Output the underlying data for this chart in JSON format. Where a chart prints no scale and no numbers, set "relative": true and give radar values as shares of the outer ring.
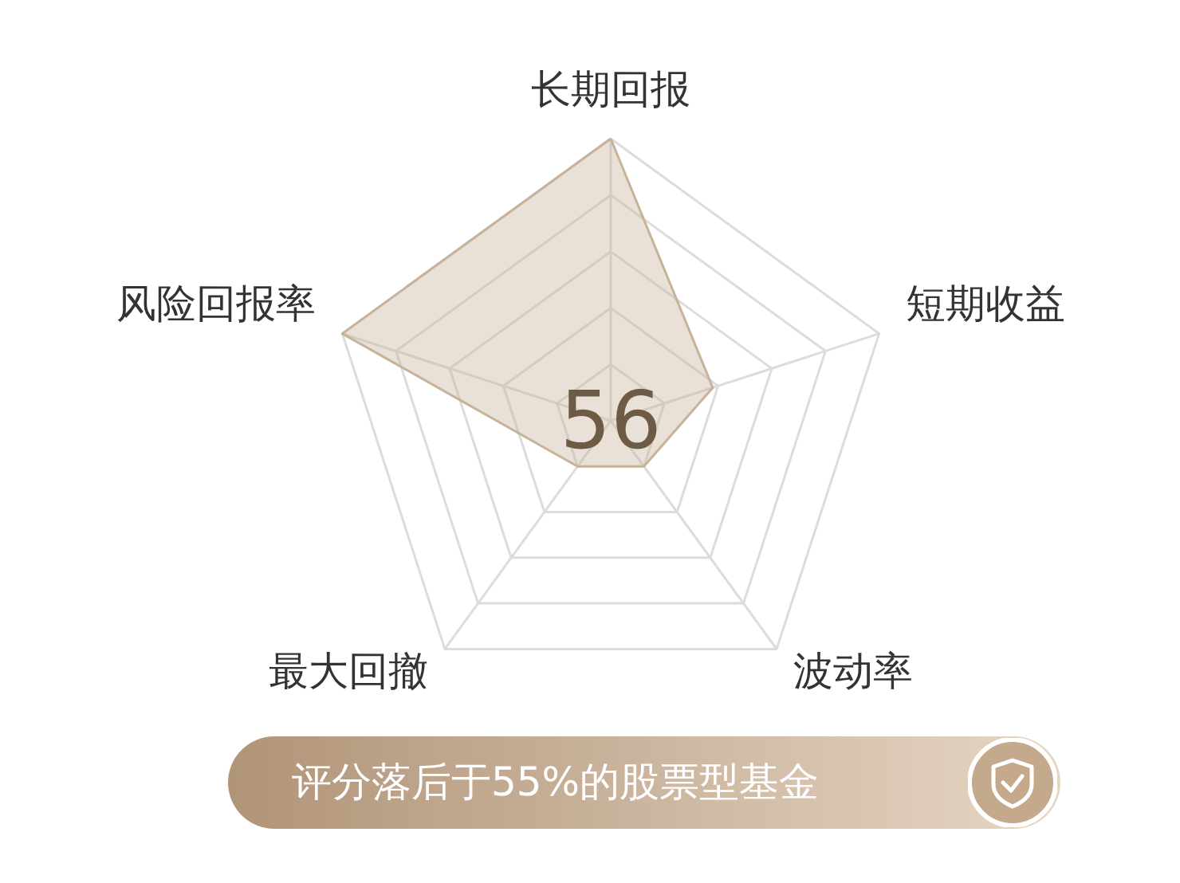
{
  "chart_data": {
    "type": "radar",
    "relative": true,
    "grid": true,
    "categories": [
      "长期回报",
      "短期收益",
      "波动率",
      "最大回撤",
      "风险回报率"
    ],
    "series": [
      {
        "color": "#c8b29a",
        "values": [
          1.0,
          0.38,
          0.2,
          0.2,
          1.0
        ]
      }
    ],
    "annotations": [
      "56",
      "评分落后于55%的股票型基金"
    ]
  }
}
